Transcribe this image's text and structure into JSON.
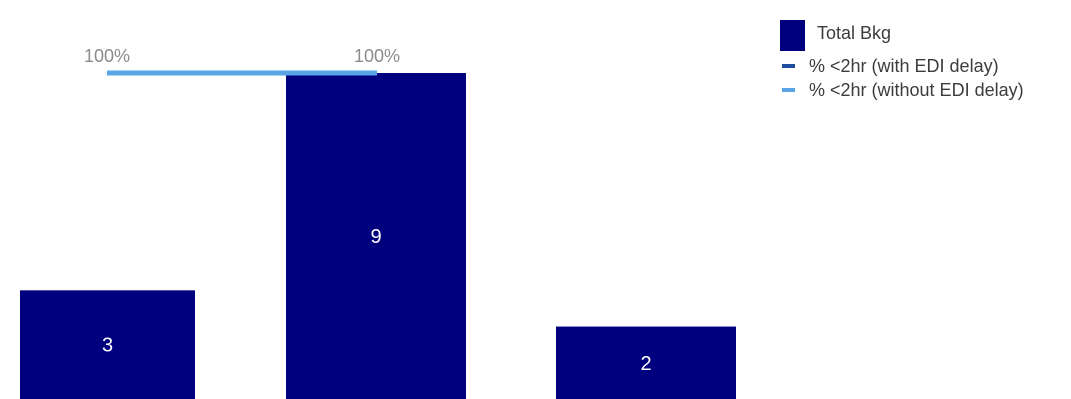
{
  "chart_data": {
    "type": "bar",
    "categories": [
      "",
      "",
      ""
    ],
    "series": [
      {
        "name": "Total Bkg",
        "kind": "bar",
        "values": [
          3,
          9,
          2
        ],
        "data_labels": [
          "3",
          "9",
          "2"
        ]
      },
      {
        "name": "% <2hr (with EDI delay)",
        "kind": "line",
        "values": [
          null,
          null,
          null
        ]
      },
      {
        "name": "% <2hr (without EDI delay)",
        "kind": "line",
        "values": [
          100,
          100,
          null
        ],
        "data_labels": [
          "100%",
          "100%",
          ""
        ]
      }
    ],
    "title": "",
    "xlabel": "",
    "ylabel": "",
    "grid": false,
    "legend_placement": "top-right"
  },
  "legend": {
    "items": [
      {
        "label": "Total Bkg",
        "color": "#00007f",
        "style": "box"
      },
      {
        "label": "% <2hr (with EDI delay)",
        "color": "#1f4e9e",
        "style": "line"
      },
      {
        "label": "% <2hr (without EDI delay)",
        "color": "#5aa5e6",
        "style": "line"
      }
    ]
  },
  "colors": {
    "bar": "#00007f",
    "line_with_edi": "#1f4e9e",
    "line_without_edi": "#5aa5e6",
    "bar_label": "#ffffff",
    "pct_label": "#8c8c8c"
  }
}
